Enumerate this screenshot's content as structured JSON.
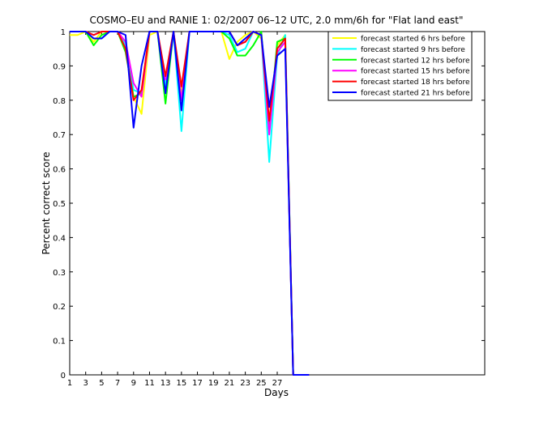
{
  "chart_data": {
    "type": "line",
    "title": "COSMO–EU and RANIE 1: 02/2007 06–12 UTC, 2.0 mm/6h for \"Flat land east\"",
    "xlabel": "Days",
    "ylabel": "Percent correct score",
    "xlim": [
      1,
      53
    ],
    "ylim": [
      0,
      1
    ],
    "x_ticks": [
      1,
      3,
      5,
      7,
      9,
      11,
      13,
      15,
      17,
      19,
      21,
      23,
      25,
      27
    ],
    "y_ticks": [
      0,
      0.1,
      0.2,
      0.3,
      0.4,
      0.5,
      0.6,
      0.7,
      0.8,
      0.9,
      1
    ],
    "y_tick_labels": [
      "0",
      "0.1",
      "0.2",
      "0.3",
      "0.4",
      "0.5",
      "0.6",
      "0.7",
      "0.8",
      "0.9",
      "1"
    ],
    "x": [
      1,
      2,
      3,
      4,
      5,
      6,
      7,
      8,
      9,
      10,
      11,
      12,
      13,
      14,
      15,
      16,
      17,
      18,
      19,
      20,
      21,
      22,
      23,
      24,
      25,
      26,
      27,
      28,
      29,
      30,
      31
    ],
    "legend_position": "top-right",
    "series": [
      {
        "name": "forecast started 6 hrs before",
        "color": "#ffff00",
        "values": [
          0.99,
          0.99,
          1,
          0.97,
          1,
          1,
          1,
          0.97,
          0.81,
          0.76,
          0.99,
          1,
          0.85,
          1,
          0.82,
          1,
          1,
          1,
          1,
          1,
          0.92,
          0.97,
          0.99,
          1,
          0.98,
          0.72,
          0.96,
          0.99,
          0,
          0,
          0
        ]
      },
      {
        "name": "forecast started 9 hrs before",
        "color": "#00ffff",
        "values": [
          1,
          1,
          1,
          0.98,
          0.98,
          1,
          1,
          0.96,
          0.83,
          0.82,
          1,
          1,
          0.84,
          1,
          0.71,
          1,
          1,
          1,
          1,
          1,
          0.99,
          0.94,
          0.95,
          1,
          0.99,
          0.62,
          0.93,
          0.99,
          0,
          0,
          0
        ]
      },
      {
        "name": "forecast started 12 hrs before",
        "color": "#00ff00",
        "values": [
          1,
          1,
          1,
          0.96,
          0.99,
          1,
          1,
          0.94,
          0.81,
          0.82,
          1,
          1,
          0.79,
          1,
          0.8,
          1,
          1,
          1,
          1,
          1,
          0.98,
          0.93,
          0.93,
          0.96,
          1,
          0.71,
          0.97,
          0.98,
          0,
          0,
          0
        ]
      },
      {
        "name": "forecast started 15 hrs before",
        "color": "#ff00ff",
        "values": [
          1,
          1,
          1,
          0.99,
          1,
          1,
          1,
          0.97,
          0.85,
          0.81,
          1,
          1,
          0.86,
          1,
          0.8,
          1,
          1,
          1,
          1,
          1,
          1,
          0.96,
          0.97,
          1,
          0.99,
          0.7,
          0.94,
          0.97,
          0,
          0,
          0
        ]
      },
      {
        "name": "forecast started 18 hrs before",
        "color": "#ff0000",
        "values": [
          1,
          1,
          1,
          0.99,
          1,
          1,
          1,
          0.95,
          0.8,
          0.83,
          1,
          1,
          0.87,
          1,
          0.84,
          1,
          1,
          1,
          1,
          1,
          1,
          0.96,
          0.97,
          1,
          0.99,
          0.74,
          0.95,
          0.98,
          0,
          0,
          0
        ]
      },
      {
        "name": "forecast started 21 hrs before",
        "color": "#0000ff",
        "values": [
          1,
          1,
          1,
          0.98,
          0.98,
          1,
          1,
          0.99,
          0.72,
          0.9,
          1,
          1,
          0.82,
          1,
          0.77,
          1,
          1,
          1,
          1,
          1,
          1,
          0.96,
          0.98,
          1,
          0.99,
          0.78,
          0.93,
          0.95,
          0,
          0,
          0
        ]
      }
    ]
  }
}
